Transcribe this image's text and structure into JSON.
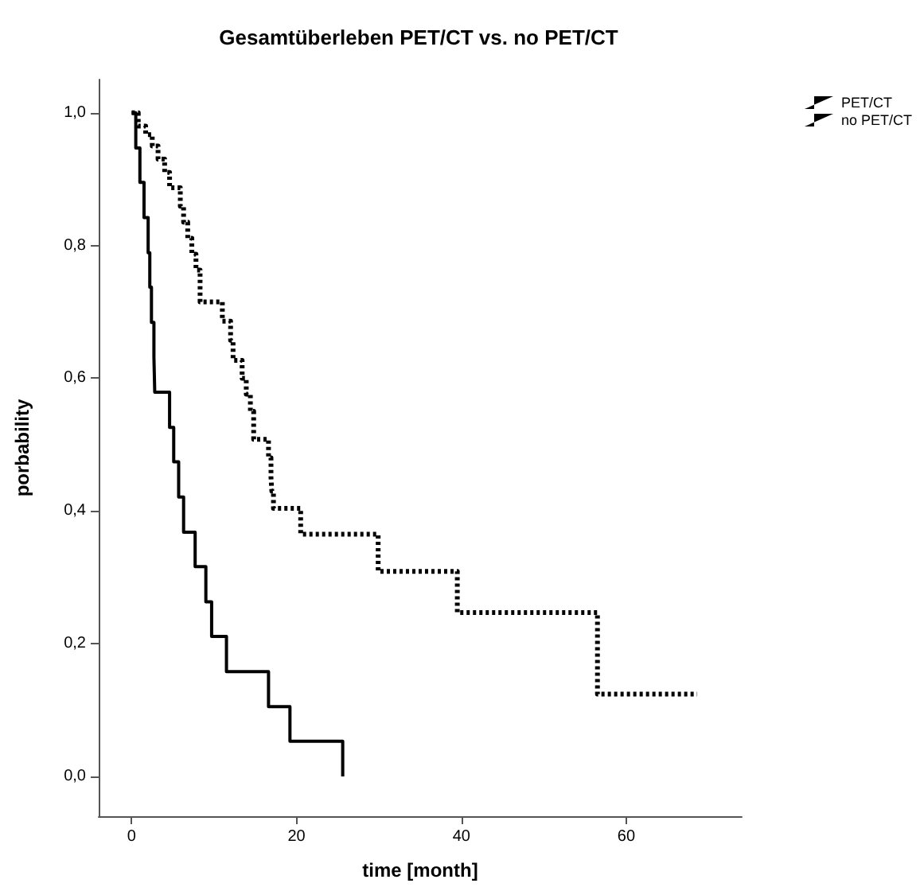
{
  "chart_data": {
    "type": "step",
    "title": "Gesamtüberleben PET/CT vs. no PET/CT",
    "xlabel": "time [month]",
    "ylabel": "porbability",
    "xlim": [
      -4,
      74
    ],
    "ylim": [
      -0.06,
      1.05
    ],
    "xticks": [
      0,
      20,
      40,
      60
    ],
    "yticks": [
      {
        "value": 0,
        "label": "0,0"
      },
      {
        "value": 0.2,
        "label": "0,2"
      },
      {
        "value": 0.4,
        "label": "0,4"
      },
      {
        "value": 0.6,
        "label": "0,6"
      },
      {
        "value": 0.8,
        "label": "0,8"
      },
      {
        "value": 1,
        "label": "1,0"
      }
    ],
    "grid": false,
    "legend": "top right",
    "marker": "none",
    "series": [
      {
        "name": "PET/CT",
        "color": "#000000",
        "line_style": "solid",
        "x": [
          0,
          0.5,
          1,
          1.5,
          2,
          2.2,
          2.4,
          2.7,
          2.8,
          4.6,
          5.1,
          5.7,
          6.3,
          7.7,
          9,
          9.7,
          11.5,
          16.6,
          19.2,
          25.6
        ],
        "values": [
          1,
          0.947,
          0.895,
          0.842,
          0.789,
          0.737,
          0.684,
          0.632,
          0.579,
          0.526,
          0.474,
          0.421,
          0.368,
          0.316,
          0.263,
          0.211,
          0.158,
          0.105,
          0.053,
          0
        ]
      },
      {
        "name": "no PET/CT",
        "color": "#000000",
        "line_style": "dotted",
        "x": [
          0,
          0.8,
          1.7,
          2.5,
          3.2,
          4,
          4.6,
          5.9,
          6.3,
          6.8,
          7.3,
          7.8,
          8.3,
          11,
          12,
          12.3,
          13.4,
          13.9,
          14.4,
          14.8,
          16.6,
          16.9,
          17,
          17.2,
          20.5,
          29.9,
          39.5,
          56.5,
          68.6
        ],
        "values": [
          1,
          0.98,
          0.967,
          0.95,
          0.93,
          0.91,
          0.887,
          0.859,
          0.835,
          0.811,
          0.787,
          0.763,
          0.715,
          0.686,
          0.657,
          0.627,
          0.6,
          0.576,
          0.55,
          0.508,
          0.48,
          0.45,
          0.43,
          0.404,
          0.365,
          0.309,
          0.247,
          0.124,
          0.124
        ]
      }
    ]
  }
}
